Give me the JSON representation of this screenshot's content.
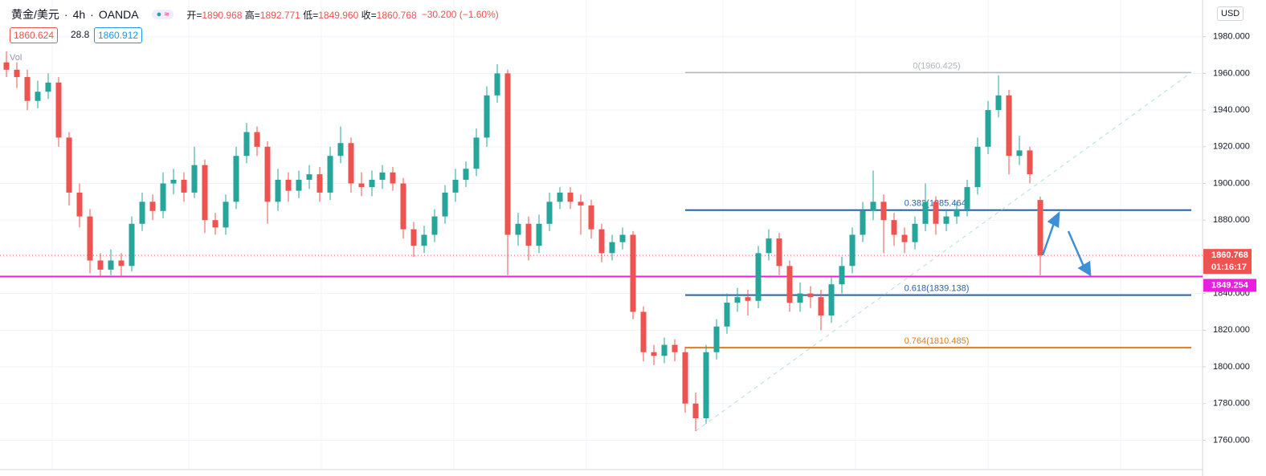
{
  "header": {
    "symbol": "黄金/美元",
    "interval": "4h",
    "exchange": "OANDA",
    "ohlc": [
      {
        "label": "开=",
        "value": "1890.968"
      },
      {
        "label": "高=",
        "value": "1892.771"
      },
      {
        "label": "低=",
        "value": "1849.960"
      },
      {
        "label": "收=",
        "value": "1860.768"
      }
    ],
    "change": "−30.200 (−1.60%)",
    "sell_price": "1860.624",
    "spread": "28.8",
    "buy_price": "1860.912",
    "volume_label": "Vol",
    "currency": "USD"
  },
  "chart_data": {
    "type": "candlestick",
    "up_color": "#26a69a",
    "down_color": "#ef5350",
    "open": [
      1966,
      1962,
      1958,
      1945,
      1950,
      1955,
      1925,
      1895,
      1882,
      1858,
      1853,
      1858,
      1855,
      1878,
      1890,
      1885,
      1900,
      1902,
      1895,
      1910,
      1880,
      1876,
      1890,
      1915,
      1928,
      1920,
      1890,
      1902,
      1896,
      1902,
      1905,
      1895,
      1915,
      1922,
      1900,
      1898,
      1902,
      1906,
      1900,
      1875,
      1866,
      1872,
      1882,
      1895,
      1902,
      1908,
      1925,
      1948,
      1960,
      1872,
      1878,
      1866,
      1878,
      1890,
      1895,
      1890,
      1888,
      1875,
      1862,
      1868,
      1872,
      1830,
      1808,
      1806,
      1812,
      1808,
      1780,
      1772,
      1808,
      1822,
      1835,
      1838,
      1836,
      1862,
      1870,
      1855,
      1835,
      1840,
      1838,
      1828,
      1845,
      1855,
      1872,
      1885,
      1890,
      1880,
      1872,
      1868,
      1878,
      1890,
      1878,
      1882,
      1886,
      1898,
      1920,
      1940,
      1948,
      1915,
      1918,
      1890.968
    ],
    "high": [
      1972,
      1966,
      1962,
      1956,
      1960,
      1958,
      1928,
      1900,
      1886,
      1862,
      1864,
      1862,
      1882,
      1895,
      1894,
      1906,
      1908,
      1906,
      1920,
      1913,
      1884,
      1894,
      1920,
      1933,
      1931,
      1923,
      1908,
      1906,
      1907,
      1910,
      1909,
      1920,
      1931,
      1925,
      1906,
      1907,
      1910,
      1909,
      1903,
      1879,
      1877,
      1886,
      1899,
      1908,
      1912,
      1930,
      1953,
      1965,
      1962,
      1884,
      1882,
      1883,
      1895,
      1898,
      1898,
      1894,
      1891,
      1878,
      1872,
      1876,
      1874,
      1833,
      1812,
      1816,
      1815,
      1811,
      1786,
      1812,
      1826,
      1840,
      1843,
      1842,
      1866,
      1875,
      1873,
      1858,
      1846,
      1844,
      1842,
      1849,
      1860,
      1876,
      1890,
      1907,
      1894,
      1884,
      1876,
      1882,
      1900,
      1893,
      1886,
      1890,
      1902,
      1925,
      1945,
      1959,
      1951,
      1926,
      1920,
      1892.771
    ],
    "low": [
      1958,
      1952,
      1940,
      1941,
      1946,
      1920,
      1888,
      1876,
      1851,
      1849,
      1850,
      1849,
      1852,
      1874,
      1880,
      1881,
      1894,
      1890,
      1892,
      1873,
      1872,
      1872,
      1886,
      1911,
      1915,
      1878,
      1885,
      1890,
      1892,
      1897,
      1890,
      1891,
      1911,
      1895,
      1893,
      1893,
      1897,
      1896,
      1870,
      1860,
      1862,
      1868,
      1878,
      1890,
      1898,
      1904,
      1920,
      1944,
      1850,
      1866,
      1858,
      1862,
      1874,
      1886,
      1886,
      1872,
      1870,
      1857,
      1858,
      1864,
      1826,
      1803,
      1801,
      1802,
      1803,
      1775,
      1765,
      1769,
      1804,
      1818,
      1830,
      1828,
      1832,
      1858,
      1850,
      1830,
      1830,
      1832,
      1820,
      1824,
      1840,
      1851,
      1868,
      1880,
      1862,
      1866,
      1862,
      1864,
      1874,
      1872,
      1874,
      1878,
      1882,
      1894,
      1916,
      1936,
      1905,
      1910,
      1900,
      1849.96
    ],
    "close": [
      1962,
      1958,
      1945,
      1950,
      1955,
      1925,
      1895,
      1882,
      1858,
      1853,
      1858,
      1855,
      1878,
      1890,
      1885,
      1900,
      1902,
      1895,
      1910,
      1880,
      1876,
      1890,
      1915,
      1928,
      1920,
      1890,
      1902,
      1896,
      1902,
      1905,
      1895,
      1915,
      1922,
      1900,
      1898,
      1902,
      1906,
      1900,
      1875,
      1866,
      1872,
      1882,
      1895,
      1902,
      1908,
      1925,
      1948,
      1960,
      1872,
      1878,
      1866,
      1878,
      1890,
      1895,
      1890,
      1888,
      1875,
      1862,
      1868,
      1872,
      1830,
      1808,
      1806,
      1812,
      1808,
      1780,
      1772,
      1808,
      1822,
      1835,
      1838,
      1836,
      1862,
      1870,
      1855,
      1835,
      1840,
      1838,
      1828,
      1845,
      1855,
      1872,
      1885,
      1890,
      1880,
      1872,
      1868,
      1878,
      1890,
      1878,
      1882,
      1886,
      1898,
      1920,
      1940,
      1948,
      1915,
      1918,
      1905,
      1860.768
    ],
    "ylim": [
      1744,
      2000
    ],
    "yticks": [
      {
        "value": 1760,
        "label": "1760.000"
      },
      {
        "value": 1780,
        "label": "1780.000"
      },
      {
        "value": 1800,
        "label": "1800.000"
      },
      {
        "value": 1820,
        "label": "1820.000"
      },
      {
        "value": 1840,
        "label": "1840.000"
      },
      {
        "value": 1860,
        "label": "1860.000"
      },
      {
        "value": 1880,
        "label": "1880.000"
      },
      {
        "value": 1900,
        "label": "1900.000"
      },
      {
        "value": 1920,
        "label": "1920.000"
      },
      {
        "value": 1940,
        "label": "1940.000"
      },
      {
        "value": 1960,
        "label": "1960.000"
      },
      {
        "value": 1980,
        "label": "1980.000"
      }
    ],
    "grid": true,
    "fib_levels": [
      {
        "label": "0(1960.425)",
        "value": 1960.425,
        "color": "#b2b5be"
      },
      {
        "label": "0.382(1885.464)",
        "value": 1885.464,
        "color": "#2962a8"
      },
      {
        "label": "0.618(1839.138)",
        "value": 1839.138,
        "color": "#2962a8"
      },
      {
        "label": "0.764(1810.485)",
        "value": 1810.485,
        "color": "#e07b1a"
      }
    ],
    "support": {
      "value": 1849.254,
      "color": "#e91ee0"
    },
    "countdown": "01:16:17"
  }
}
